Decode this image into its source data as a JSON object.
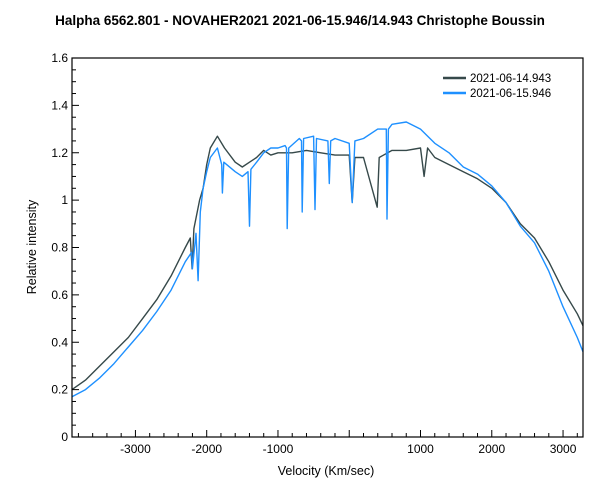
{
  "chart_data": {
    "type": "line",
    "title": "Halpha 6562.801 - NOVAHER2021   2021-06-15.946/14.943   Christophe Boussin",
    "xlabel": "Velocity (Km/sec)",
    "ylabel": "Relative intensity",
    "xlim": [
      -3890,
      3280
    ],
    "ylim": [
      0,
      1.6
    ],
    "grid": false,
    "legend": "top-right",
    "x_ticks": [
      -3000,
      -2000,
      -1000,
      1000,
      2000,
      3000
    ],
    "x_tick_labels": [
      "-3000",
      "-2000",
      "-1000",
      "1000",
      "2000",
      "3000"
    ],
    "y_ticks": [
      0,
      0.2,
      0.4,
      0.6,
      0.8,
      1,
      1.2,
      1.4,
      1.6
    ],
    "y_tick_labels": [
      "0",
      "0.2",
      "0.4",
      "0.6",
      "0.8",
      "1",
      "1.2",
      "1.4",
      "1.6"
    ],
    "series": [
      {
        "name": "2021-06-14.943",
        "color": "#36494a",
        "x": [
          -3890,
          -3700,
          -3500,
          -3300,
          -3100,
          -2900,
          -2700,
          -2500,
          -2300,
          -2230,
          -2205,
          -2180,
          -2100,
          -2050,
          -2000,
          -1950,
          -1850,
          -1750,
          -1600,
          -1500,
          -1400,
          -1300,
          -1200,
          -1100,
          -1000,
          -800,
          -600,
          -400,
          -200,
          0,
          42,
          80,
          200,
          393,
          420,
          600,
          800,
          1000,
          1050,
          1100,
          1200,
          1400,
          1600,
          1800,
          2000,
          2200,
          2400,
          2500,
          2600,
          2800,
          3000,
          3200,
          3280
        ],
        "y": [
          0.2,
          0.24,
          0.3,
          0.36,
          0.42,
          0.5,
          0.58,
          0.68,
          0.8,
          0.84,
          0.71,
          0.88,
          1.0,
          1.05,
          1.15,
          1.22,
          1.27,
          1.22,
          1.16,
          1.14,
          1.16,
          1.18,
          1.21,
          1.19,
          1.2,
          1.2,
          1.21,
          1.2,
          1.19,
          1.19,
          0.99,
          1.18,
          1.18,
          0.97,
          1.18,
          1.21,
          1.21,
          1.22,
          1.1,
          1.22,
          1.18,
          1.15,
          1.12,
          1.09,
          1.05,
          0.99,
          0.9,
          0.87,
          0.84,
          0.74,
          0.62,
          0.52,
          0.47
        ]
      },
      {
        "name": "2021-06-15.946",
        "color": "#1e90ff",
        "x": [
          -3890,
          -3700,
          -3500,
          -3300,
          -3100,
          -2900,
          -2700,
          -2500,
          -2300,
          -2210,
          -2200,
          -2150,
          -2120,
          -2090,
          -2050,
          -2000,
          -1950,
          -1850,
          -1790,
          -1780,
          -1760,
          -1600,
          -1500,
          -1420,
          -1400,
          -1380,
          -1300,
          -1200,
          -1100,
          -1000,
          -900,
          -880,
          -870,
          -850,
          -700,
          -670,
          -660,
          -640,
          -500,
          -480,
          -460,
          -300,
          -280,
          -260,
          -200,
          0,
          42,
          80,
          200,
          400,
          520,
          530,
          550,
          600,
          800,
          1000,
          1200,
          1400,
          1600,
          1800,
          2000,
          2200,
          2400,
          2600,
          2800,
          3000,
          3200,
          3280
        ],
        "y": [
          0.17,
          0.2,
          0.25,
          0.31,
          0.38,
          0.45,
          0.53,
          0.62,
          0.74,
          0.78,
          0.71,
          0.86,
          0.66,
          0.95,
          1.05,
          1.12,
          1.18,
          1.22,
          1.15,
          1.03,
          1.16,
          1.12,
          1.1,
          1.12,
          0.89,
          1.13,
          1.16,
          1.2,
          1.22,
          1.22,
          1.23,
          1.22,
          0.88,
          1.22,
          1.26,
          1.25,
          0.95,
          1.26,
          1.27,
          0.96,
          1.26,
          1.25,
          1.07,
          1.25,
          1.26,
          1.24,
          0.99,
          1.25,
          1.26,
          1.3,
          1.3,
          0.92,
          1.3,
          1.32,
          1.33,
          1.3,
          1.24,
          1.2,
          1.14,
          1.11,
          1.06,
          0.99,
          0.89,
          0.82,
          0.7,
          0.55,
          0.42,
          0.36
        ]
      }
    ]
  }
}
